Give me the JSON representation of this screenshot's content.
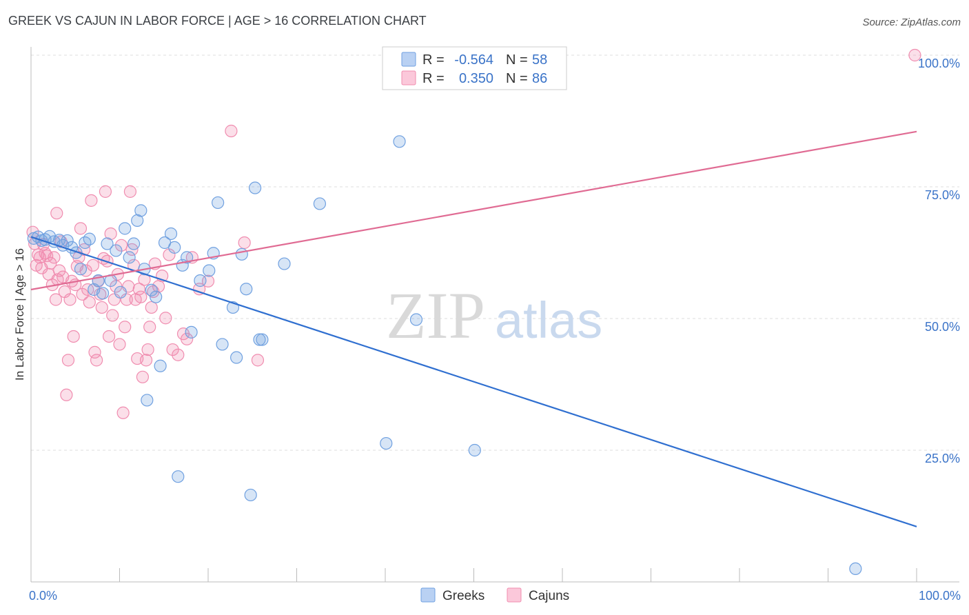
{
  "chart_data": {
    "type": "scatter",
    "title": "GREEK VS CAJUN IN LABOR FORCE | AGE > 16 CORRELATION CHART",
    "source": "Source: ZipAtlas.com",
    "xlabel": "",
    "ylabel": "In Labor Force | Age > 16",
    "xlim": [
      0,
      100
    ],
    "ylim": [
      0,
      100
    ],
    "x_tick_labels": [
      "0.0%",
      "100.0%"
    ],
    "y_ticks": [
      {
        "value": 25,
        "label": "25.0%"
      },
      {
        "value": 50,
        "label": "50.0%"
      },
      {
        "value": 75,
        "label": "75.0%"
      },
      {
        "value": 100,
        "label": "100.0%"
      }
    ],
    "watermark": {
      "zip": "ZIP",
      "atlas": "atlas"
    },
    "series": [
      {
        "name": "Greeks",
        "color": "#6fa0e0",
        "line_color": "#2f6fd0",
        "stats": {
          "r_label": "R =",
          "r_value": "-0.564",
          "n_label": "N =",
          "n_value": "58"
        },
        "trend": {
          "x0": 0,
          "y0": 65.5,
          "x1": 100,
          "y1": 10.5
        },
        "points": [
          [
            0.3,
            65.2
          ],
          [
            0.8,
            65.5
          ],
          [
            1.2,
            64.8
          ],
          [
            1.6,
            65.0
          ],
          [
            2.1,
            65.6
          ],
          [
            2.6,
            64.6
          ],
          [
            3.2,
            64.9
          ],
          [
            3.6,
            63.9
          ],
          [
            4.1,
            64.8
          ],
          [
            4.6,
            63.5
          ],
          [
            5.1,
            62.5
          ],
          [
            5.6,
            59.4
          ],
          [
            6.1,
            64.4
          ],
          [
            6.6,
            65.1
          ],
          [
            7.1,
            55.5
          ],
          [
            7.6,
            57.2
          ],
          [
            8.1,
            54.8
          ],
          [
            8.6,
            64.2
          ],
          [
            9.0,
            57.2
          ],
          [
            9.6,
            62.9
          ],
          [
            10.1,
            55.0
          ],
          [
            10.6,
            67.1
          ],
          [
            11.1,
            61.6
          ],
          [
            11.6,
            64.2
          ],
          [
            12.0,
            68.6
          ],
          [
            12.4,
            70.5
          ],
          [
            12.8,
            59.4
          ],
          [
            13.1,
            34.5
          ],
          [
            13.6,
            55.4
          ],
          [
            14.1,
            54.1
          ],
          [
            14.6,
            41.0
          ],
          [
            15.1,
            64.4
          ],
          [
            15.8,
            66.1
          ],
          [
            16.2,
            63.5
          ],
          [
            16.6,
            20.0
          ],
          [
            17.1,
            60.1
          ],
          [
            17.6,
            61.6
          ],
          [
            18.1,
            47.4
          ],
          [
            19.1,
            57.2
          ],
          [
            20.1,
            59.1
          ],
          [
            20.6,
            62.4
          ],
          [
            21.1,
            72.0
          ],
          [
            21.6,
            45.1
          ],
          [
            22.8,
            52.1
          ],
          [
            23.2,
            42.6
          ],
          [
            23.8,
            62.2
          ],
          [
            24.3,
            55.6
          ],
          [
            24.8,
            16.5
          ],
          [
            25.3,
            74.8
          ],
          [
            25.8,
            46.0
          ],
          [
            26.1,
            46.0
          ],
          [
            28.6,
            60.4
          ],
          [
            32.6,
            71.8
          ],
          [
            40.1,
            26.3
          ],
          [
            41.6,
            83.6
          ],
          [
            43.5,
            49.8
          ],
          [
            50.1,
            25.0
          ],
          [
            93.1,
            2.5
          ]
        ]
      },
      {
        "name": "Cajuns",
        "color": "#f08caf",
        "line_color": "#e06b93",
        "stats": {
          "r_label": "R =",
          "r_value": "0.350",
          "n_label": "N =",
          "n_value": "86"
        },
        "trend": {
          "x0": 0,
          "y0": 55.5,
          "x1": 100,
          "y1": 85.5
        },
        "points": [
          [
            0.2,
            66.4
          ],
          [
            0.4,
            64.2
          ],
          [
            0.6,
            60.1
          ],
          [
            0.8,
            62.1
          ],
          [
            1.0,
            61.6
          ],
          [
            1.2,
            59.6
          ],
          [
            1.4,
            64.1
          ],
          [
            1.6,
            62.4
          ],
          [
            1.8,
            61.9
          ],
          [
            2.0,
            58.4
          ],
          [
            2.2,
            60.5
          ],
          [
            2.4,
            56.4
          ],
          [
            2.6,
            61.6
          ],
          [
            2.8,
            53.6
          ],
          [
            3.0,
            57.4
          ],
          [
            3.2,
            59.1
          ],
          [
            3.4,
            64.6
          ],
          [
            3.6,
            57.9
          ],
          [
            3.8,
            55.1
          ],
          [
            4.0,
            35.5
          ],
          [
            4.2,
            42.1
          ],
          [
            4.4,
            53.6
          ],
          [
            4.6,
            57.1
          ],
          [
            4.8,
            46.6
          ],
          [
            5.0,
            56.4
          ],
          [
            5.2,
            59.9
          ],
          [
            5.4,
            61.6
          ],
          [
            5.6,
            67.1
          ],
          [
            5.8,
            54.6
          ],
          [
            6.0,
            63.1
          ],
          [
            6.2,
            59.1
          ],
          [
            6.4,
            55.5
          ],
          [
            6.6,
            53.1
          ],
          [
            6.8,
            72.4
          ],
          [
            7.0,
            60.1
          ],
          [
            7.2,
            43.6
          ],
          [
            7.4,
            42.1
          ],
          [
            7.6,
            57.1
          ],
          [
            7.8,
            54.6
          ],
          [
            8.0,
            52.1
          ],
          [
            8.2,
            61.4
          ],
          [
            8.4,
            74.1
          ],
          [
            8.6,
            60.9
          ],
          [
            8.8,
            46.6
          ],
          [
            9.0,
            66.1
          ],
          [
            9.2,
            50.6
          ],
          [
            9.4,
            53.6
          ],
          [
            9.6,
            56.1
          ],
          [
            9.8,
            58.4
          ],
          [
            10.0,
            45.1
          ],
          [
            10.2,
            63.9
          ],
          [
            10.4,
            32.1
          ],
          [
            10.6,
            48.4
          ],
          [
            10.8,
            53.6
          ],
          [
            11.0,
            56.1
          ],
          [
            11.2,
            74.1
          ],
          [
            11.4,
            63.1
          ],
          [
            11.6,
            60.1
          ],
          [
            11.8,
            53.6
          ],
          [
            12.0,
            42.4
          ],
          [
            12.2,
            55.6
          ],
          [
            12.4,
            54.1
          ],
          [
            12.6,
            38.9
          ],
          [
            12.8,
            57.4
          ],
          [
            13.0,
            42.1
          ],
          [
            13.2,
            44.1
          ],
          [
            13.4,
            48.4
          ],
          [
            13.6,
            52.1
          ],
          [
            13.8,
            55.1
          ],
          [
            14.0,
            60.4
          ],
          [
            14.4,
            56.1
          ],
          [
            14.8,
            58.1
          ],
          [
            15.2,
            50.1
          ],
          [
            15.6,
            62.1
          ],
          [
            16.0,
            44.1
          ],
          [
            16.6,
            43.1
          ],
          [
            17.2,
            47.1
          ],
          [
            17.6,
            46.1
          ],
          [
            18.2,
            61.6
          ],
          [
            19.0,
            55.6
          ],
          [
            20.0,
            57.1
          ],
          [
            22.6,
            85.6
          ],
          [
            24.1,
            64.4
          ],
          [
            25.6,
            42.1
          ],
          [
            99.8,
            100.0
          ],
          [
            2.9,
            70.0
          ]
        ]
      }
    ]
  }
}
